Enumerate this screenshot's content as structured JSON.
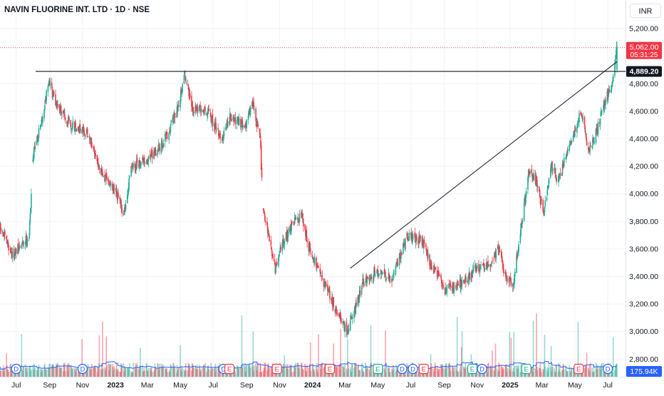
{
  "header": {
    "title": "NAVIN FLUORINE INT. LTD · 1D · NSE"
  },
  "currency": "INR",
  "price_tags": {
    "last": "5,062.00",
    "countdown": "05:31:25",
    "level": "4,889.20",
    "volume": "175.94K"
  },
  "colors": {
    "up": "#22ab94",
    "down": "#f23645",
    "volume_ma": "#2962ff",
    "event_dividend": "#2962ff",
    "event_earnings_missed": "#f23645",
    "event_earnings_beat": "#22ab94"
  },
  "chart_data": {
    "type": "candlestick",
    "symbol": "NAVIN FLUORINE INT. LTD",
    "interval": "1D",
    "exchange": "NSE",
    "currency": "INR",
    "y_ticks": [
      5200,
      4800,
      4600,
      4400,
      4200,
      4000,
      3800,
      3600,
      3400,
      3200,
      3000,
      2800
    ],
    "y_tick_labels": [
      "5,200.00",
      "4,800.00",
      "4,600.00",
      "4,400.00",
      "4,200.00",
      "4,000.00",
      "3,800.00",
      "3,600.00",
      "3,400.00",
      "3,200.00",
      "3,000.00",
      "2,800.00"
    ],
    "x_tick_labels": [
      "Jul",
      "Sep",
      "Nov",
      "2023",
      "Mar",
      "May",
      "Jul",
      "Sep",
      "Nov",
      "2024",
      "Mar",
      "May",
      "Jul",
      "Sep",
      "Nov",
      "2025",
      "Mar",
      "May",
      "Jul"
    ],
    "x_tick_dates": [
      "2022-07-01",
      "2022-09-01",
      "2022-11-01",
      "2023-01-01",
      "2023-03-01",
      "2023-05-01",
      "2023-07-01",
      "2023-09-01",
      "2023-11-01",
      "2024-01-01",
      "2024-03-01",
      "2024-05-01",
      "2024-07-01",
      "2024-09-01",
      "2024-11-01",
      "2025-01-01",
      "2025-03-01",
      "2025-05-01",
      "2025-07-01"
    ],
    "price_path": [
      [
        "2022-06-01",
        3750
      ],
      [
        "2022-06-25",
        3550
      ],
      [
        "2022-07-25",
        3700
      ],
      [
        "2022-08-02",
        4300
      ],
      [
        "2022-08-16",
        4500
      ],
      [
        "2022-08-30",
        4820
      ],
      [
        "2022-09-13",
        4650
      ],
      [
        "2022-10-11",
        4500
      ],
      [
        "2022-11-08",
        4450
      ],
      [
        "2022-12-06",
        4150
      ],
      [
        "2023-01-03",
        4000
      ],
      [
        "2023-01-17",
        3850
      ],
      [
        "2023-01-31",
        4200
      ],
      [
        "2023-02-28",
        4250
      ],
      [
        "2023-03-28",
        4350
      ],
      [
        "2023-04-25",
        4600
      ],
      [
        "2023-05-09",
        4870
      ],
      [
        "2023-05-23",
        4620
      ],
      [
        "2023-06-20",
        4600
      ],
      [
        "2023-07-18",
        4400
      ],
      [
        "2023-08-01",
        4550
      ],
      [
        "2023-08-29",
        4500
      ],
      [
        "2023-09-12",
        4650
      ],
      [
        "2023-09-26",
        4400
      ],
      [
        "2023-10-01",
        3900
      ],
      [
        "2023-10-24",
        3450
      ],
      [
        "2023-11-07",
        3650
      ],
      [
        "2023-11-28",
        3800
      ],
      [
        "2023-12-12",
        3850
      ],
      [
        "2023-12-26",
        3600
      ],
      [
        "2024-01-23",
        3350
      ],
      [
        "2024-02-20",
        3100
      ],
      [
        "2024-03-05",
        3000
      ],
      [
        "2024-03-19",
        3150
      ],
      [
        "2024-04-02",
        3350
      ],
      [
        "2024-04-30",
        3450
      ],
      [
        "2024-05-28",
        3380
      ],
      [
        "2024-06-11",
        3550
      ],
      [
        "2024-06-25",
        3700
      ],
      [
        "2024-07-23",
        3650
      ],
      [
        "2024-08-06",
        3500
      ],
      [
        "2024-09-03",
        3300
      ],
      [
        "2024-10-01",
        3350
      ],
      [
        "2024-10-29",
        3450
      ],
      [
        "2024-11-26",
        3500
      ],
      [
        "2024-12-10",
        3600
      ],
      [
        "2024-12-24",
        3400
      ],
      [
        "2025-01-07",
        3350
      ],
      [
        "2025-01-21",
        3750
      ],
      [
        "2025-02-04",
        4150
      ],
      [
        "2025-02-18",
        4100
      ],
      [
        "2025-03-04",
        3850
      ],
      [
        "2025-03-18",
        4200
      ],
      [
        "2025-04-01",
        4100
      ],
      [
        "2025-04-15",
        4300
      ],
      [
        "2025-04-29",
        4450
      ],
      [
        "2025-05-13",
        4600
      ],
      [
        "2025-05-27",
        4300
      ],
      [
        "2025-06-10",
        4450
      ],
      [
        "2025-06-24",
        4650
      ],
      [
        "2025-07-08",
        4800
      ],
      [
        "2025-07-18",
        5062
      ]
    ],
    "horizontal_line": {
      "value": 4889.2
    },
    "trend_line": {
      "start": [
        "2024-03-11",
        3460
      ],
      "end": [
        "2025-07-18",
        4960
      ]
    },
    "last_price": 5062.0,
    "events": [
      {
        "type": "dividend",
        "label": "D",
        "date": "2022-07-01"
      },
      {
        "type": "dividend",
        "label": "D",
        "date": "2022-11-01"
      },
      {
        "type": "dividend",
        "label": "D",
        "date": "2023-07-20"
      },
      {
        "type": "earnings",
        "label": "E",
        "date": "2023-07-31",
        "result": "missed"
      },
      {
        "type": "earnings",
        "label": "E",
        "date": "2023-10-27",
        "result": "missed"
      },
      {
        "type": "earnings",
        "label": "E",
        "date": "2024-02-02",
        "result": "missed"
      },
      {
        "type": "earnings",
        "label": "E",
        "date": "2024-05-01",
        "result": "beat"
      },
      {
        "type": "dividend",
        "label": "D",
        "date": "2024-06-15"
      },
      {
        "type": "dividend",
        "label": "D",
        "date": "2024-07-05"
      },
      {
        "type": "earnings",
        "label": "E",
        "date": "2024-07-25",
        "result": "missed"
      },
      {
        "type": "earnings",
        "label": "E",
        "date": "2024-10-23",
        "result": "beat"
      },
      {
        "type": "dividend",
        "label": "D",
        "date": "2024-11-10"
      },
      {
        "type": "earnings",
        "label": "E",
        "date": "2025-01-31",
        "result": "beat"
      },
      {
        "type": "earnings",
        "label": "E",
        "date": "2025-05-08",
        "result": "missed"
      },
      {
        "type": "dividend",
        "label": "D",
        "date": "2025-07-01"
      }
    ],
    "volume_last": "175.94K"
  }
}
